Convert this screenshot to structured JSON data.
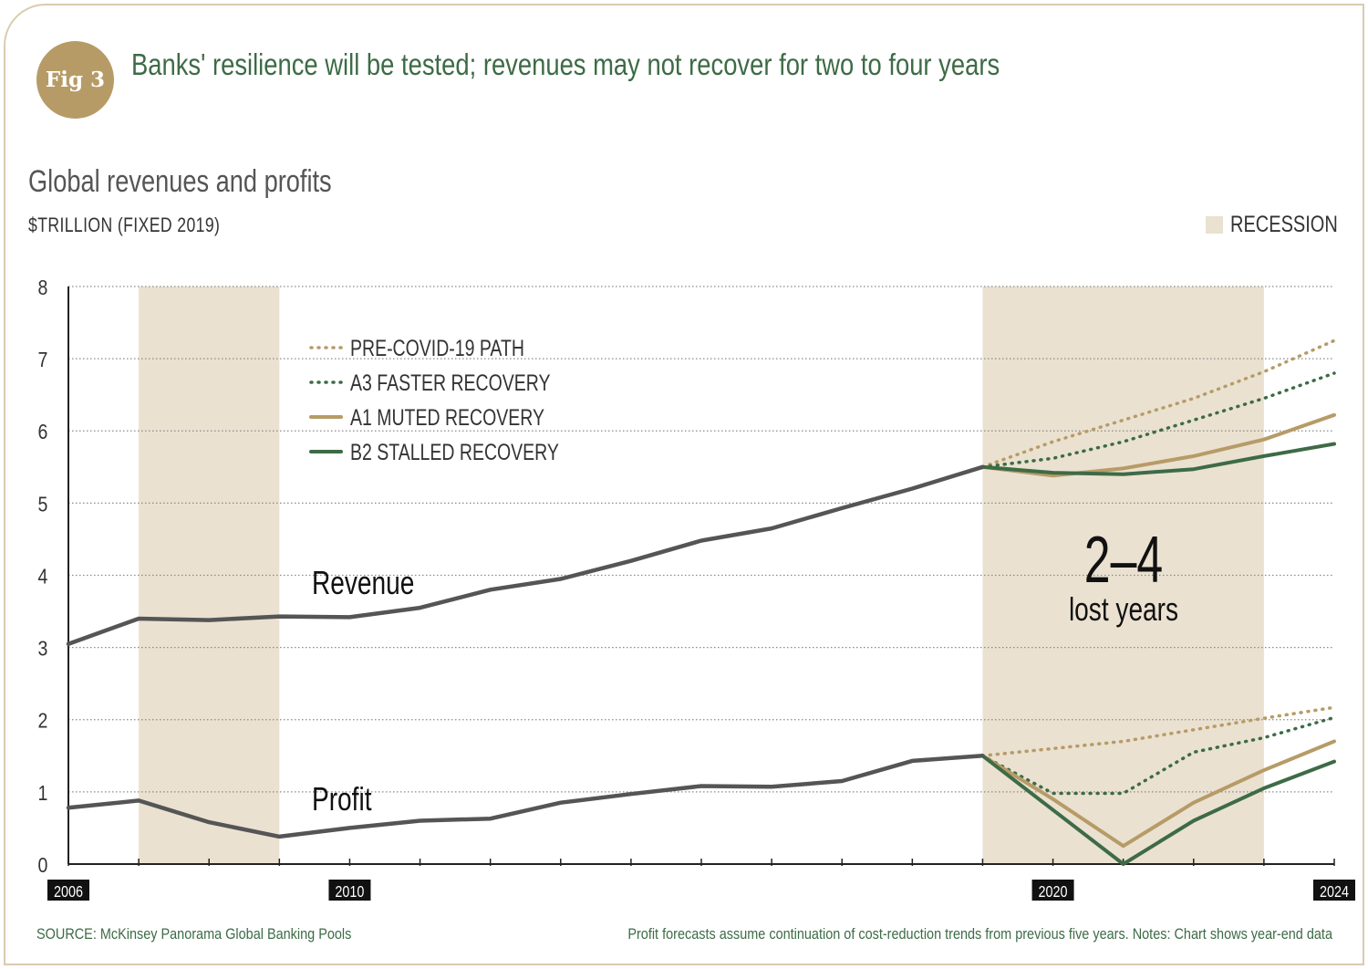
{
  "figure": {
    "badge": "Fig 3",
    "title": "Banks' resilience will be tested; revenues may not recover for two to four years"
  },
  "chart_header": {
    "title": "Global revenues and profits",
    "unit": "$TRILLION (FIXED 2019)",
    "recession_legend": "RECESSION"
  },
  "footer": {
    "source": "SOURCE: McKinsey Panorama Global Banking Pools",
    "note": "Profit forecasts assume continuation of cost-reduction trends from previous five years. Notes: Chart shows year-end data"
  },
  "colors": {
    "history": "#555555",
    "pre_covid": "#b79b67",
    "a3": "#3d6b46",
    "a1": "#b79b67",
    "b2": "#3d6b46",
    "recession": "#eae1d1",
    "title_green": "#3d6b46",
    "badge_gold": "#b79b67"
  },
  "chart_data": {
    "type": "line",
    "ylim": [
      0,
      8
    ],
    "xlim": [
      2006,
      2024
    ],
    "yticks": [
      0,
      1,
      2,
      3,
      4,
      5,
      6,
      7,
      8
    ],
    "xticks_labeled": [
      "2006",
      "2010",
      "2020",
      "2024"
    ],
    "grid": true,
    "recession_bands": [
      [
        2007,
        2009
      ],
      [
        2019,
        2023
      ]
    ],
    "legend": [
      {
        "label": "PRE-COVID-19 PATH",
        "style": "dotted",
        "color": "#b79b67"
      },
      {
        "label": "A3 FASTER RECOVERY",
        "style": "dotted",
        "color": "#3d6b46"
      },
      {
        "label": "A1 MUTED RECOVERY",
        "style": "solid",
        "color": "#b79b67"
      },
      {
        "label": "B2 STALLED RECOVERY",
        "style": "solid",
        "color": "#3d6b46"
      }
    ],
    "annotations": {
      "revenue_label": "Revenue",
      "profit_label": "Profit",
      "lost_years_big": "2–4",
      "lost_years_small": "lost years"
    },
    "revenue": {
      "history": {
        "x": [
          2006,
          2007,
          2008,
          2009,
          2010,
          2011,
          2012,
          2013,
          2014,
          2015,
          2016,
          2017,
          2018,
          2019
        ],
        "y": [
          3.05,
          3.4,
          3.38,
          3.43,
          3.42,
          3.55,
          3.8,
          3.95,
          4.2,
          4.48,
          4.65,
          4.93,
          5.2,
          5.5
        ]
      },
      "pre_covid": {
        "x": [
          2019,
          2020,
          2021,
          2022,
          2023,
          2024
        ],
        "y": [
          5.5,
          5.85,
          6.15,
          6.45,
          6.82,
          7.25
        ]
      },
      "a3": {
        "x": [
          2019,
          2020,
          2021,
          2022,
          2023,
          2024
        ],
        "y": [
          5.5,
          5.62,
          5.85,
          6.15,
          6.45,
          6.8
        ]
      },
      "a1": {
        "x": [
          2019,
          2020,
          2021,
          2022,
          2023,
          2024
        ],
        "y": [
          5.5,
          5.38,
          5.48,
          5.65,
          5.88,
          6.22
        ]
      },
      "b2": {
        "x": [
          2019,
          2020,
          2021,
          2022,
          2023,
          2024
        ],
        "y": [
          5.5,
          5.42,
          5.4,
          5.47,
          5.65,
          5.82
        ]
      }
    },
    "profit": {
      "history": {
        "x": [
          2006,
          2007,
          2008,
          2009,
          2010,
          2011,
          2012,
          2013,
          2014,
          2015,
          2016,
          2017,
          2018,
          2019
        ],
        "y": [
          0.78,
          0.88,
          0.58,
          0.38,
          0.5,
          0.6,
          0.63,
          0.85,
          0.97,
          1.08,
          1.07,
          1.15,
          1.43,
          1.5
        ]
      },
      "pre_covid": {
        "x": [
          2019,
          2020,
          2021,
          2022,
          2023,
          2024
        ],
        "y": [
          1.5,
          1.6,
          1.7,
          1.86,
          2.02,
          2.17
        ]
      },
      "a3": {
        "x": [
          2019,
          2020,
          2021,
          2022,
          2023,
          2024
        ],
        "y": [
          1.5,
          0.98,
          0.98,
          1.55,
          1.75,
          2.03
        ]
      },
      "a1": {
        "x": [
          2019,
          2020,
          2021,
          2022,
          2023,
          2024
        ],
        "y": [
          1.5,
          0.9,
          0.25,
          0.85,
          1.3,
          1.7
        ]
      },
      "b2": {
        "x": [
          2019,
          2020,
          2021,
          2022,
          2023,
          2024
        ],
        "y": [
          1.5,
          0.75,
          0.0,
          0.6,
          1.05,
          1.42
        ]
      }
    }
  }
}
